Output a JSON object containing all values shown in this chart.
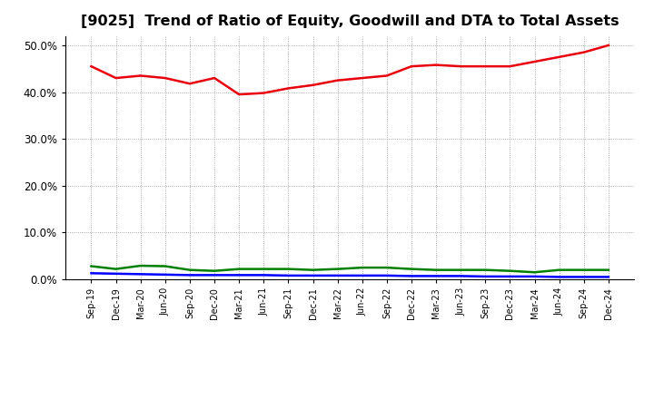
{
  "title": "[9025]  Trend of Ratio of Equity, Goodwill and DTA to Total Assets",
  "x_labels": [
    "Sep-19",
    "Dec-19",
    "Mar-20",
    "Jun-20",
    "Sep-20",
    "Dec-20",
    "Mar-21",
    "Jun-21",
    "Sep-21",
    "Dec-21",
    "Mar-22",
    "Jun-22",
    "Sep-22",
    "Dec-22",
    "Mar-23",
    "Jun-23",
    "Sep-23",
    "Dec-23",
    "Mar-24",
    "Jun-24",
    "Sep-24",
    "Dec-24"
  ],
  "equity": [
    45.5,
    43.0,
    43.5,
    43.0,
    41.8,
    43.0,
    39.5,
    39.8,
    40.8,
    41.5,
    42.5,
    43.0,
    43.5,
    45.5,
    45.8,
    45.5,
    45.5,
    45.5,
    46.5,
    47.5,
    48.5,
    50.0
  ],
  "goodwill": [
    1.3,
    1.2,
    1.1,
    1.0,
    0.9,
    0.9,
    0.9,
    0.9,
    0.8,
    0.8,
    0.8,
    0.8,
    0.8,
    0.7,
    0.7,
    0.7,
    0.6,
    0.6,
    0.6,
    0.5,
    0.5,
    0.5
  ],
  "dta": [
    2.8,
    2.2,
    2.9,
    2.8,
    2.0,
    1.8,
    2.2,
    2.2,
    2.2,
    2.0,
    2.2,
    2.5,
    2.5,
    2.2,
    2.0,
    2.0,
    2.0,
    1.8,
    1.5,
    2.0,
    2.0,
    2.0
  ],
  "equity_color": "#e8000d",
  "goodwill_color": "#0000ff",
  "dta_color": "#008000",
  "ylim": [
    0,
    52
  ],
  "yticks": [
    0,
    10,
    20,
    30,
    40,
    50
  ],
  "background_color": "#ffffff",
  "grid_color": "#888888",
  "title_fontsize": 11.5
}
